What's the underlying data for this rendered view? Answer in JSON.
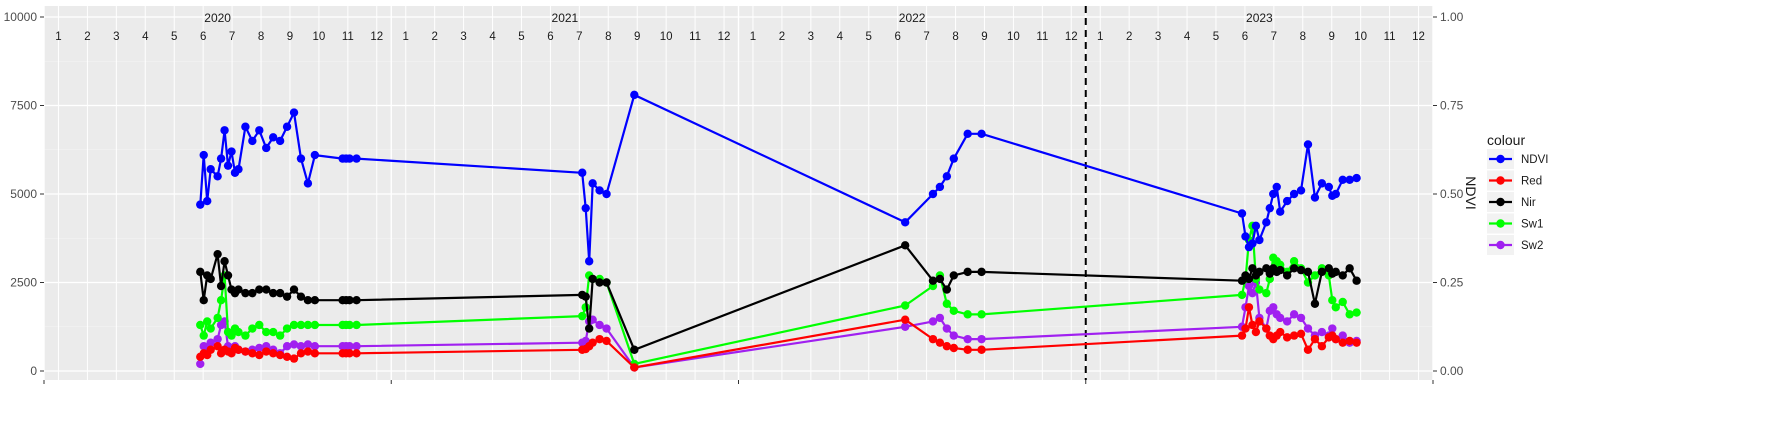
{
  "chart_data": {
    "type": "line",
    "title": "",
    "xlabel": "",
    "ylabel": "",
    "y2label": "NDVI",
    "ylim": [
      0,
      10000
    ],
    "y2lim": [
      0,
      1
    ],
    "yticks": [
      0,
      2500,
      5000,
      7500,
      10000
    ],
    "y2ticks": [
      "0.00",
      "0.25",
      "0.50",
      "0.75",
      "1.00"
    ],
    "xlim": [
      2020.0,
      2024.0
    ],
    "years": [
      "2020",
      "2021",
      "2022",
      "2023"
    ],
    "months": [
      "1",
      "2",
      "3",
      "4",
      "5",
      "6",
      "7",
      "8",
      "9",
      "10",
      "11",
      "12"
    ],
    "vline_x": 2023.0,
    "grid": true,
    "legend": {
      "title": "colour",
      "position": "right"
    },
    "series": [
      {
        "name": "NDVI",
        "color": "#0000ff",
        "x": [
          2020.45,
          2020.46,
          2020.47,
          2020.48,
          2020.5,
          2020.51,
          2020.52,
          2020.53,
          2020.54,
          2020.55,
          2020.56,
          2020.58,
          2020.6,
          2020.62,
          2020.64,
          2020.66,
          2020.68,
          2020.7,
          2020.72,
          2020.74,
          2020.76,
          2020.78,
          2020.86,
          2020.87,
          2020.88,
          2020.9,
          2021.55,
          2021.56,
          2021.57,
          2021.58,
          2021.6,
          2021.62,
          2021.7,
          2022.48,
          2022.56,
          2022.58,
          2022.6,
          2022.62,
          2022.66,
          2022.7,
          2023.45,
          2023.46,
          2023.47,
          2023.48,
          2023.49,
          2023.5,
          2023.52,
          2023.53,
          2023.54,
          2023.55,
          2023.56,
          2023.58,
          2023.6,
          2023.62,
          2023.64,
          2023.66,
          2023.68,
          2023.7,
          2023.71,
          2023.72,
          2023.74,
          2023.76,
          2023.78
        ],
        "y": [
          4700,
          6100,
          4800,
          5700,
          5500,
          6000,
          6800,
          5800,
          6200,
          5600,
          5700,
          6900,
          6500,
          6800,
          6300,
          6600,
          6500,
          6900,
          7300,
          6000,
          5300,
          6100,
          6000,
          6000,
          6000,
          6000,
          5600,
          4600,
          3100,
          5300,
          5100,
          5000,
          7800,
          4200,
          5000,
          5200,
          5500,
          6000,
          6700,
          6700,
          4450,
          3800,
          3500,
          3600,
          4100,
          3700,
          4200,
          4600,
          5000,
          5200,
          4500,
          4800,
          5000,
          5100,
          6400,
          4900,
          5300,
          5200,
          4950,
          5000,
          5400,
          5400,
          5450
        ]
      },
      {
        "name": "Red",
        "color": "#ff0000",
        "x": [
          2020.45,
          2020.46,
          2020.47,
          2020.48,
          2020.5,
          2020.51,
          2020.52,
          2020.53,
          2020.54,
          2020.55,
          2020.56,
          2020.58,
          2020.6,
          2020.62,
          2020.64,
          2020.66,
          2020.68,
          2020.7,
          2020.72,
          2020.74,
          2020.76,
          2020.78,
          2020.86,
          2020.87,
          2020.88,
          2020.9,
          2021.55,
          2021.56,
          2021.57,
          2021.58,
          2021.6,
          2021.62,
          2021.7,
          2022.48,
          2022.56,
          2022.58,
          2022.6,
          2022.62,
          2022.66,
          2022.7,
          2023.45,
          2023.46,
          2023.47,
          2023.48,
          2023.49,
          2023.5,
          2023.52,
          2023.53,
          2023.54,
          2023.55,
          2023.56,
          2023.58,
          2023.6,
          2023.62,
          2023.64,
          2023.66,
          2023.68,
          2023.7,
          2023.71,
          2023.72,
          2023.74,
          2023.76,
          2023.78
        ],
        "y": [
          400,
          500,
          450,
          600,
          700,
          500,
          600,
          550,
          500,
          650,
          600,
          550,
          500,
          450,
          550,
          500,
          450,
          400,
          350,
          500,
          550,
          500,
          500,
          500,
          500,
          500,
          600,
          620,
          700,
          800,
          900,
          850,
          100,
          1450,
          900,
          800,
          700,
          650,
          600,
          600,
          1000,
          1200,
          1800,
          1300,
          1100,
          1400,
          1200,
          1000,
          900,
          1000,
          1100,
          950,
          1000,
          1050,
          600,
          900,
          700,
          950,
          1000,
          900,
          800,
          850,
          800
        ]
      },
      {
        "name": "Nir",
        "color": "#000000",
        "x": [
          2020.45,
          2020.46,
          2020.47,
          2020.48,
          2020.5,
          2020.51,
          2020.52,
          2020.53,
          2020.54,
          2020.55,
          2020.56,
          2020.58,
          2020.6,
          2020.62,
          2020.64,
          2020.66,
          2020.68,
          2020.7,
          2020.72,
          2020.74,
          2020.76,
          2020.78,
          2020.86,
          2020.87,
          2020.88,
          2020.9,
          2021.55,
          2021.56,
          2021.57,
          2021.58,
          2021.6,
          2021.62,
          2021.7,
          2022.48,
          2022.56,
          2022.58,
          2022.6,
          2022.62,
          2022.66,
          2022.7,
          2023.45,
          2023.46,
          2023.47,
          2023.48,
          2023.49,
          2023.5,
          2023.52,
          2023.53,
          2023.54,
          2023.55,
          2023.56,
          2023.58,
          2023.6,
          2023.62,
          2023.64,
          2023.66,
          2023.68,
          2023.7,
          2023.71,
          2023.72,
          2023.74,
          2023.76,
          2023.78
        ],
        "y": [
          2800,
          2000,
          2700,
          2600,
          3300,
          2400,
          3100,
          2700,
          2300,
          2200,
          2300,
          2200,
          2200,
          2300,
          2300,
          2200,
          2200,
          2100,
          2300,
          2100,
          2000,
          2000,
          2000,
          2000,
          2000,
          2000,
          2150,
          2100,
          1200,
          2600,
          2500,
          2500,
          600,
          3550,
          2550,
          2600,
          2300,
          2700,
          2800,
          2800,
          2550,
          2700,
          2600,
          2900,
          2700,
          2800,
          2900,
          2750,
          2900,
          2800,
          2850,
          2700,
          2900,
          2850,
          2800,
          1900,
          2800,
          2900,
          2750,
          2800,
          2700,
          2900,
          2550
        ]
      },
      {
        "name": "Sw1",
        "color": "#00ff00",
        "x": [
          2020.45,
          2020.46,
          2020.47,
          2020.48,
          2020.5,
          2020.51,
          2020.52,
          2020.53,
          2020.54,
          2020.55,
          2020.56,
          2020.58,
          2020.6,
          2020.62,
          2020.64,
          2020.66,
          2020.68,
          2020.7,
          2020.72,
          2020.74,
          2020.76,
          2020.78,
          2020.86,
          2020.87,
          2020.88,
          2020.9,
          2021.55,
          2021.56,
          2021.57,
          2021.58,
          2021.6,
          2021.62,
          2021.7,
          2022.48,
          2022.56,
          2022.58,
          2022.6,
          2022.62,
          2022.66,
          2022.7,
          2023.45,
          2023.46,
          2023.47,
          2023.48,
          2023.49,
          2023.5,
          2023.52,
          2023.53,
          2023.54,
          2023.55,
          2023.56,
          2023.58,
          2023.6,
          2023.62,
          2023.64,
          2023.66,
          2023.68,
          2023.7,
          2023.71,
          2023.72,
          2023.74,
          2023.76,
          2023.78
        ],
        "y": [
          1300,
          1000,
          1400,
          1200,
          1500,
          2000,
          2700,
          1100,
          1000,
          1200,
          1100,
          1000,
          1200,
          1300,
          1100,
          1100,
          1000,
          1200,
          1300,
          1300,
          1300,
          1300,
          1300,
          1300,
          1300,
          1300,
          1550,
          1800,
          2700,
          2600,
          2600,
          2500,
          200,
          1850,
          2400,
          2700,
          1900,
          1700,
          1600,
          1600,
          2150,
          2600,
          3700,
          4100,
          2600,
          2300,
          2200,
          2600,
          3200,
          3100,
          3000,
          2800,
          3100,
          2900,
          2500,
          2700,
          2900,
          2700,
          2000,
          1800,
          1950,
          1600,
          1650
        ]
      },
      {
        "name": "Sw2",
        "color": "#a020f0",
        "x": [
          2020.45,
          2020.46,
          2020.47,
          2020.48,
          2020.5,
          2020.51,
          2020.52,
          2020.53,
          2020.54,
          2020.55,
          2020.56,
          2020.58,
          2020.6,
          2020.62,
          2020.64,
          2020.66,
          2020.68,
          2020.7,
          2020.72,
          2020.74,
          2020.76,
          2020.78,
          2020.86,
          2020.87,
          2020.88,
          2020.9,
          2021.55,
          2021.56,
          2021.57,
          2021.58,
          2021.6,
          2021.62,
          2021.7,
          2022.48,
          2022.56,
          2022.58,
          2022.6,
          2022.62,
          2022.66,
          2022.7,
          2023.45,
          2023.46,
          2023.47,
          2023.48,
          2023.49,
          2023.5,
          2023.52,
          2023.53,
          2023.54,
          2023.55,
          2023.56,
          2023.58,
          2023.6,
          2023.62,
          2023.64,
          2023.66,
          2023.68,
          2023.7,
          2023.71,
          2023.72,
          2023.74,
          2023.76,
          2023.78
        ],
        "y": [
          200,
          700,
          600,
          800,
          900,
          1300,
          1400,
          700,
          600,
          700,
          600,
          550,
          600,
          650,
          700,
          600,
          500,
          700,
          750,
          700,
          750,
          700,
          700,
          700,
          700,
          700,
          800,
          850,
          1400,
          1450,
          1300,
          1200,
          100,
          1250,
          1400,
          1500,
          1200,
          1000,
          900,
          900,
          1250,
          1800,
          2400,
          2200,
          2500,
          1500,
          1200,
          1700,
          1800,
          1600,
          1500,
          1400,
          1600,
          1500,
          1200,
          1000,
          1100,
          1000,
          1200,
          900,
          1000,
          800,
          850
        ]
      }
    ]
  }
}
